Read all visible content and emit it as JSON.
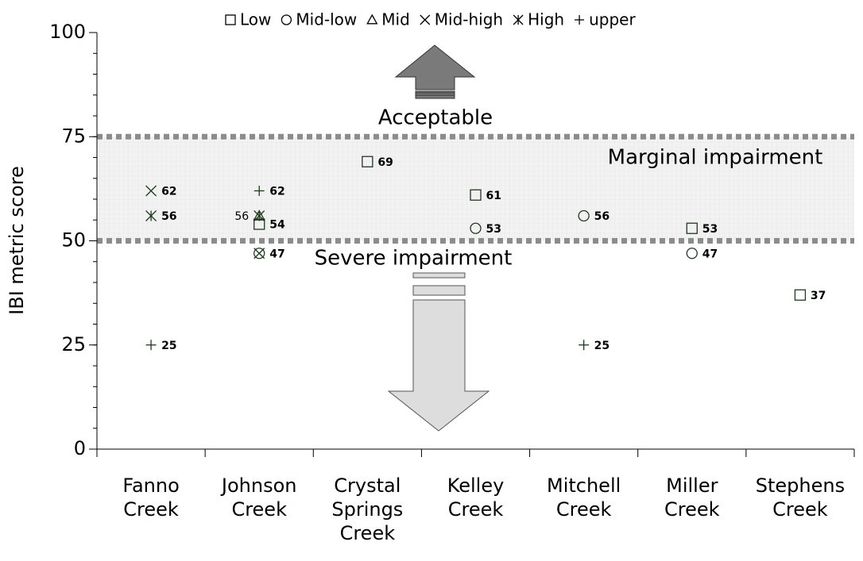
{
  "chart_data": {
    "type": "scatter",
    "y_label": "IBI metric score",
    "categories": [
      "Fanno Creek",
      "Johnson Creek",
      "Crystal Springs Creek",
      "Kelley Creek",
      "Mitchell Creek",
      "Miller Creek",
      "Stephens Creek"
    ],
    "series": [
      {
        "name": "Low",
        "color": "#1f3a1f",
        "values": [
          null,
          54,
          69,
          61,
          null,
          53,
          37
        ]
      },
      {
        "name": "Mid-low",
        "color": "#1f3a1f",
        "values": [
          null,
          47,
          null,
          53,
          56,
          47,
          null
        ]
      },
      {
        "name": "Mid",
        "color": "#1f3a1f",
        "values": [
          null,
          56,
          null,
          null,
          null,
          null,
          null
        ]
      },
      {
        "name": "Mid-high",
        "color": "#1f3a1f",
        "values": [
          62,
          47,
          null,
          null,
          null,
          null,
          null
        ]
      },
      {
        "name": "High",
        "color": "#1f3a1f",
        "values": [
          56,
          56,
          null,
          null,
          null,
          null,
          null
        ]
      },
      {
        "name": "upper",
        "color": "#1f3a1f",
        "values": [
          25,
          62,
          null,
          null,
          25,
          null,
          null
        ]
      }
    ],
    "thresholds": [
      50,
      75
    ],
    "zone_labels": [
      "Acceptable",
      "Marginal impairment",
      "Severe impairment"
    ],
    "ylim": [
      0,
      100
    ],
    "yticks": [
      0,
      25,
      50,
      75,
      100
    ],
    "legend": "top"
  }
}
